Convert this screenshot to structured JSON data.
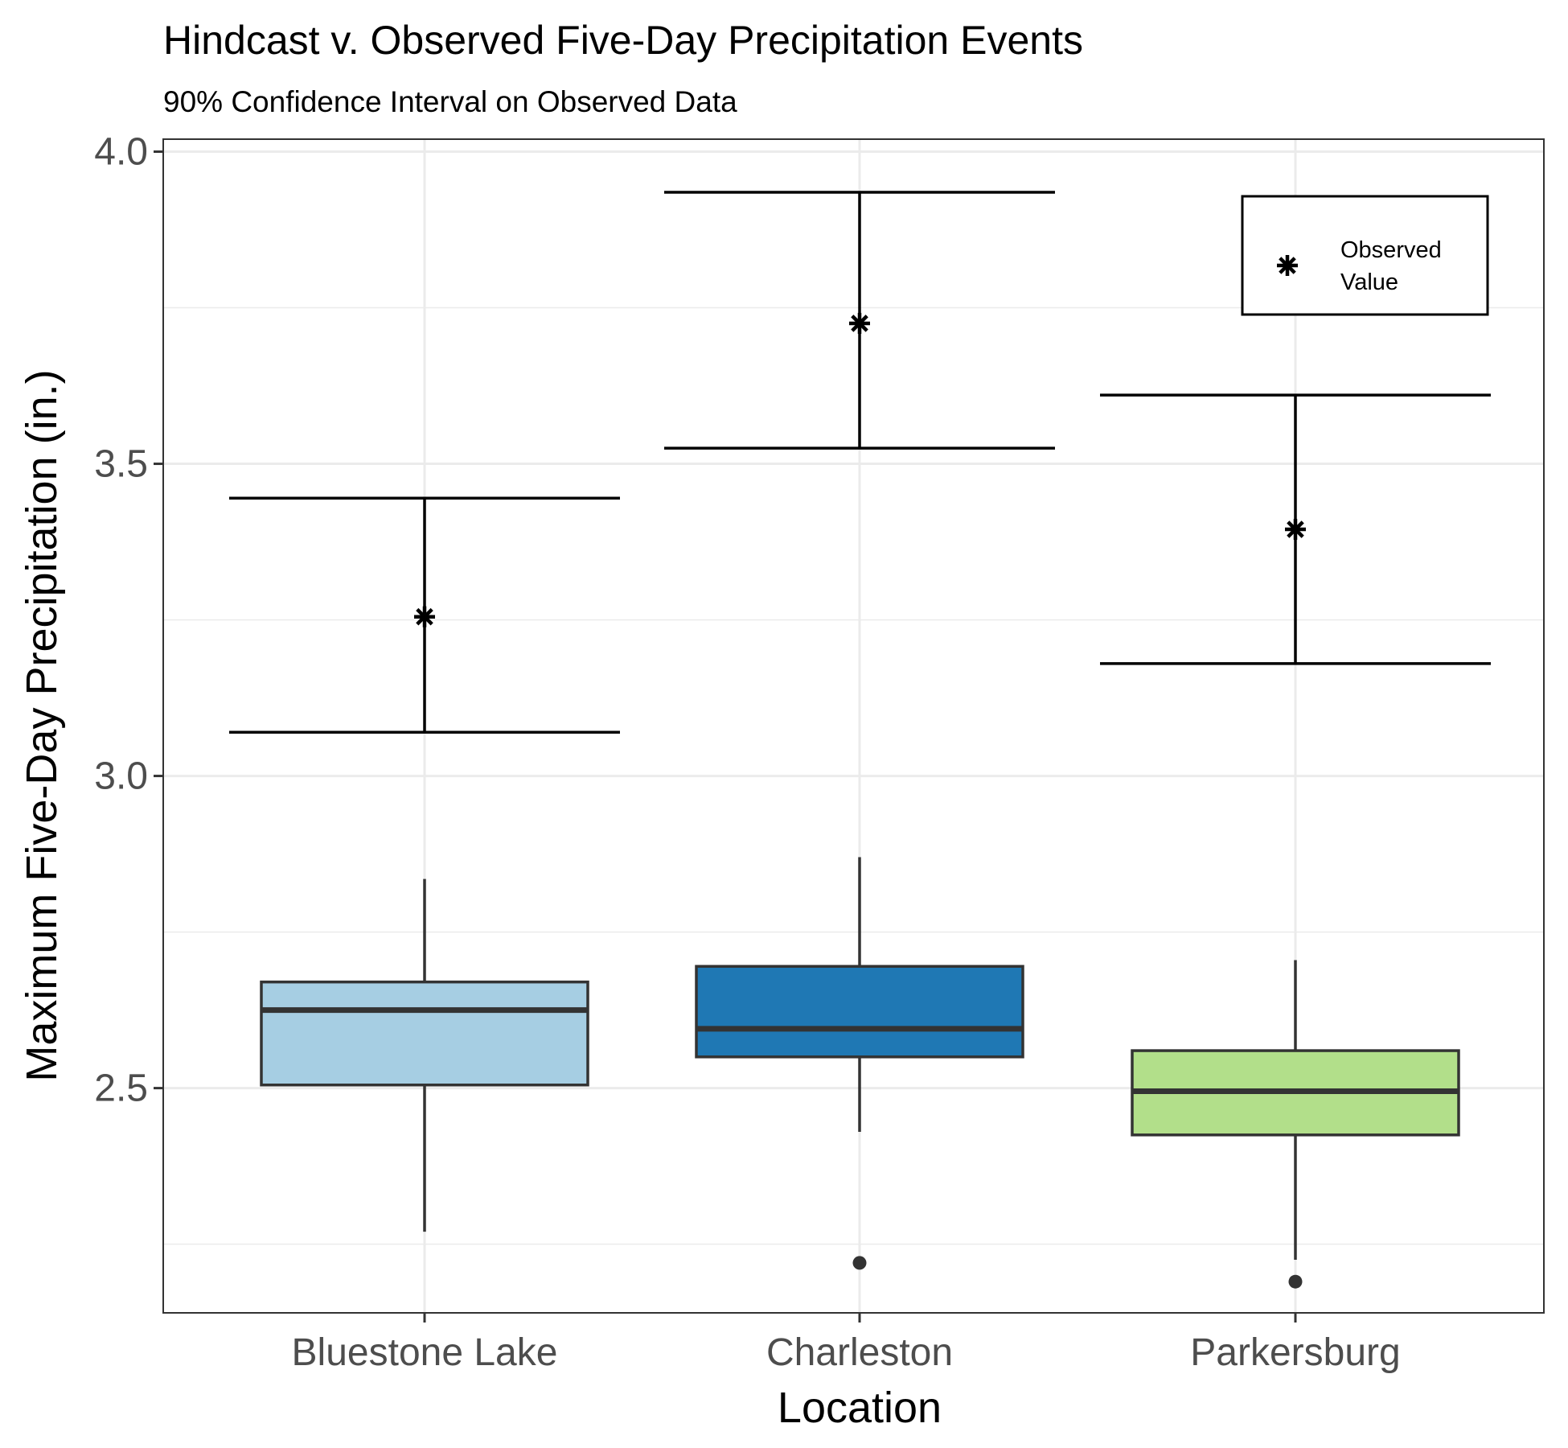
{
  "chart_data": {
    "type": "box",
    "title": "Hindcast v. Observed Five-Day Precipitation Events",
    "subtitle": "90% Confidence Interval on Observed Data",
    "xlabel": "Location",
    "ylabel": "Maximum Five-Day Precipitation (in.)",
    "ylim": [
      2.14,
      4.02
    ],
    "yticks": [
      2.5,
      3.0,
      3.5,
      4.0
    ],
    "ytick_labels": [
      "2.5",
      "3.0",
      "3.5",
      "4.0"
    ],
    "grid": true,
    "categories": [
      "Bluestone Lake",
      "Charleston",
      "Parkersburg"
    ],
    "boxes": [
      {
        "category": "Bluestone Lake",
        "fill": "#a6cee3",
        "whisker_low": 2.27,
        "q1": 2.505,
        "median": 2.625,
        "q3": 2.67,
        "whisker_high": 2.835,
        "outliers": []
      },
      {
        "category": "Charleston",
        "fill": "#1f78b4",
        "whisker_low": 2.43,
        "q1": 2.55,
        "median": 2.595,
        "q3": 2.695,
        "whisker_high": 2.87,
        "outliers": [
          2.22
        ]
      },
      {
        "category": "Parkersburg",
        "fill": "#b2df8a",
        "whisker_low": 2.225,
        "q1": 2.425,
        "median": 2.495,
        "q3": 2.56,
        "whisker_high": 2.705,
        "outliers": [
          2.19
        ]
      }
    ],
    "observed": [
      {
        "category": "Bluestone Lake",
        "value": 3.255,
        "ci_low": 3.07,
        "ci_high": 3.445
      },
      {
        "category": "Charleston",
        "value": 3.725,
        "ci_low": 3.525,
        "ci_high": 3.935
      },
      {
        "category": "Parkersburg",
        "value": 3.395,
        "ci_low": 3.18,
        "ci_high": 3.61
      }
    ],
    "legend": {
      "position": "top-right",
      "line1": "Observed",
      "line2": "Value",
      "marker": "asterisk"
    }
  }
}
